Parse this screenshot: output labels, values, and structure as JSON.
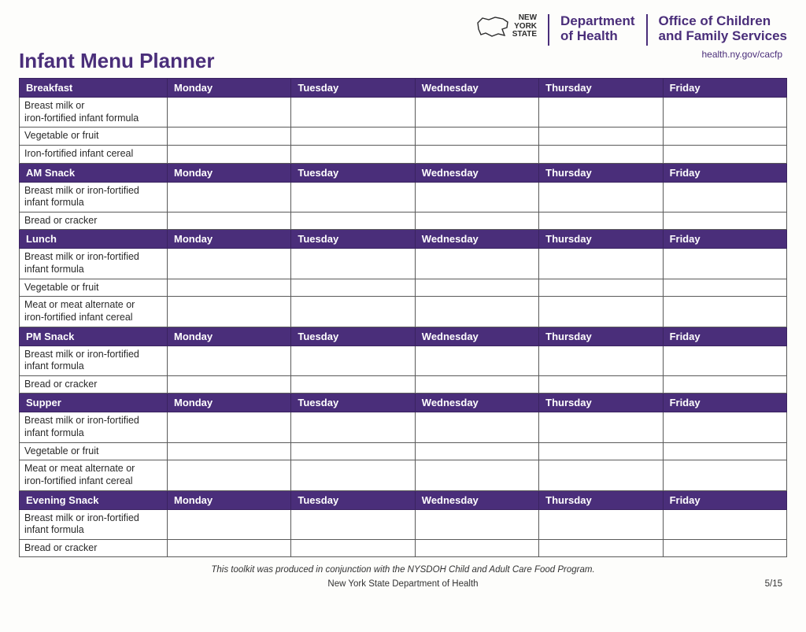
{
  "logo": {
    "nys_line1": "NEW",
    "nys_line2": "YORK",
    "nys_line3": "STATE",
    "dept_line1": "Department",
    "dept_line2": "of Health",
    "ocfs_line1": "Office of Children",
    "ocfs_line2": "and Family Services"
  },
  "url": "health.ny.gov/cacfp",
  "title": "Infant Menu Planner",
  "days": [
    "Monday",
    "Tuesday",
    "Wednesday",
    "Thursday",
    "Friday"
  ],
  "sections": [
    {
      "name": "Breakfast",
      "rows": [
        {
          "label": "Breast milk or\niron-fortified infant formula",
          "twoLine": true
        },
        {
          "label": "Vegetable or fruit",
          "twoLine": false
        },
        {
          "label": "Iron-fortified infant cereal",
          "twoLine": false
        }
      ]
    },
    {
      "name": "AM Snack",
      "rows": [
        {
          "label": "Breast milk or iron-fortified\ninfant formula",
          "twoLine": true
        },
        {
          "label": "Bread or cracker",
          "twoLine": false
        }
      ]
    },
    {
      "name": "Lunch",
      "rows": [
        {
          "label": "Breast milk or iron-fortified\ninfant formula",
          "twoLine": true
        },
        {
          "label": "Vegetable or fruit",
          "twoLine": false
        },
        {
          "label": "Meat or meat alternate or\niron-fortified infant cereal",
          "twoLine": true
        }
      ]
    },
    {
      "name": "PM Snack",
      "rows": [
        {
          "label": "Breast milk or iron-fortified\ninfant formula",
          "twoLine": true
        },
        {
          "label": "Bread or cracker",
          "twoLine": false
        }
      ]
    },
    {
      "name": "Supper",
      "rows": [
        {
          "label": "Breast milk or iron-fortified\ninfant formula",
          "twoLine": true
        },
        {
          "label": "Vegetable or fruit",
          "twoLine": false
        },
        {
          "label": "Meat or meat alternate or\niron-fortified infant cereal",
          "twoLine": true
        }
      ]
    },
    {
      "name": "Evening Snack",
      "rows": [
        {
          "label": "Breast milk or iron-fortified\ninfant formula",
          "twoLine": true
        },
        {
          "label": "Bread or cracker",
          "twoLine": false
        }
      ]
    }
  ],
  "footer": {
    "line1": "This toolkit was produced in conjunction with the NYSDOH Child and Adult Care Food Program.",
    "line2": "New York State Department of Health",
    "page": "5/15"
  },
  "colors": {
    "brand_purple": "#4a2e7a",
    "header_border": "#3a2360",
    "cell_border": "#5a5a5a",
    "background": "#fdfdfb",
    "text": "#1a1a1a"
  }
}
